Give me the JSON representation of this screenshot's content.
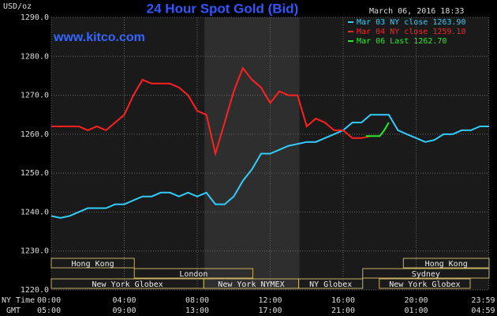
{
  "chart_data": {
    "type": "line",
    "title": "24 Hour Spot Gold (Bid)",
    "source": "www.kitco.com",
    "timestamp": "March 06, 2016 18:33",
    "y_label": "USD/oz",
    "x_row_labels": [
      "NY Time",
      "GMT"
    ],
    "xlim": [
      0,
      24
    ],
    "xticks": [
      {
        "value": 0,
        "label": "00:00"
      },
      {
        "value": 4,
        "label": "04:00"
      },
      {
        "value": 8,
        "label": "08:00"
      },
      {
        "value": 12,
        "label": "12:00"
      },
      {
        "value": 16,
        "label": "16:00"
      },
      {
        "value": 20,
        "label": "20:00"
      },
      {
        "value": 23.98,
        "label": "23:59"
      }
    ],
    "gmt_tick_labels": [
      "05:00",
      "09:00",
      "13:00",
      "17:00",
      "21:00",
      "01:00",
      "04:59"
    ],
    "ylim": [
      1220,
      1290
    ],
    "yticks": [
      {
        "value": 1220,
        "label": "1220.0"
      },
      {
        "value": 1230,
        "label": "1230.0"
      },
      {
        "value": 1240,
        "label": "1240.0"
      },
      {
        "value": 1250,
        "label": "1250.0"
      },
      {
        "value": 1260,
        "label": "1260.0"
      },
      {
        "value": 1270,
        "label": "1270.0"
      },
      {
        "value": 1280,
        "label": "1280.0"
      },
      {
        "value": 1290,
        "label": "1290.0"
      }
    ],
    "grid": true,
    "legend": "top-right",
    "shaded_span": [
      8.4,
      13.6
    ],
    "session_rows": [
      [
        {
          "label": "Hong Kong",
          "start": 0,
          "end": 4.55
        },
        {
          "label": "Hong Kong",
          "start": 19.3,
          "end": 24
        }
      ],
      [
        {
          "label": "London",
          "start": 4.55,
          "end": 11.05
        },
        {
          "label": "Sydney",
          "start": 17.07,
          "end": 24
        }
      ],
      [
        {
          "label": "New York Globex",
          "start": 0,
          "end": 8.36
        },
        {
          "label": "New York NYMEX",
          "start": 8.36,
          "end": 13.56
        },
        {
          "label": "NY Globex",
          "start": 13.56,
          "end": 17.07
        },
        {
          "label": "New York Globex",
          "start": 17.98,
          "end": 22.96
        }
      ]
    ],
    "series": [
      {
        "name": "Mar 03 NY close 1263.90",
        "color": "#33ccff",
        "x": [
          0,
          0.5,
          1,
          1.5,
          2,
          2.5,
          3,
          3.5,
          4,
          4.5,
          5,
          5.5,
          6,
          6.5,
          7,
          7.5,
          8,
          8.5,
          9,
          9.5,
          10,
          10.5,
          11,
          11.5,
          12,
          12.5,
          13,
          13.5,
          14,
          14.5,
          15,
          15.5,
          16,
          16.5,
          17,
          17.5,
          18,
          18.5,
          19,
          19.5,
          20,
          20.5,
          21,
          21.5,
          22,
          22.5,
          23,
          23.5,
          24
        ],
        "values": [
          1239,
          1238.5,
          1239,
          1240,
          1241,
          1241,
          1241,
          1242,
          1242,
          1243,
          1244,
          1244,
          1245,
          1245,
          1244,
          1245,
          1244,
          1245,
          1242,
          1242,
          1244,
          1248,
          1251,
          1255,
          1255,
          1256,
          1257,
          1257.5,
          1258,
          1258,
          1259,
          1260,
          1261,
          1263,
          1263,
          1265,
          1265,
          1265,
          1261,
          1260,
          1259,
          1258,
          1258.5,
          1260,
          1260,
          1261,
          1261,
          1262,
          1262
        ]
      },
      {
        "name": "Mar 04 NY close 1259.10",
        "color": "#ff2020",
        "x": [
          0,
          0.5,
          1,
          1.5,
          2,
          2.5,
          3,
          3.5,
          4,
          4.5,
          5,
          5.5,
          6,
          6.5,
          7,
          7.5,
          8,
          8.5,
          9,
          9.5,
          10,
          10.5,
          11,
          11.5,
          12,
          12.5,
          13,
          13.5,
          14,
          14.5,
          15,
          15.5,
          16,
          16.5,
          17,
          17.5
        ],
        "values": [
          1262,
          1262,
          1262,
          1262,
          1261,
          1262,
          1261,
          1263,
          1265,
          1270,
          1274,
          1273,
          1273,
          1273,
          1272,
          1270,
          1266,
          1265,
          1255,
          1263,
          1271,
          1277,
          1274,
          1272,
          1268,
          1271,
          1270,
          1270,
          1262,
          1264,
          1263,
          1261,
          1261,
          1259,
          1259,
          1259.5
        ]
      },
      {
        "name": "Mar 06 Last 1262.70",
        "color": "#22ee22",
        "x": [
          17.25,
          17.5,
          18,
          18.25,
          18.5
        ],
        "values": [
          1259.5,
          1259.5,
          1259.5,
          1261,
          1263
        ]
      }
    ]
  }
}
